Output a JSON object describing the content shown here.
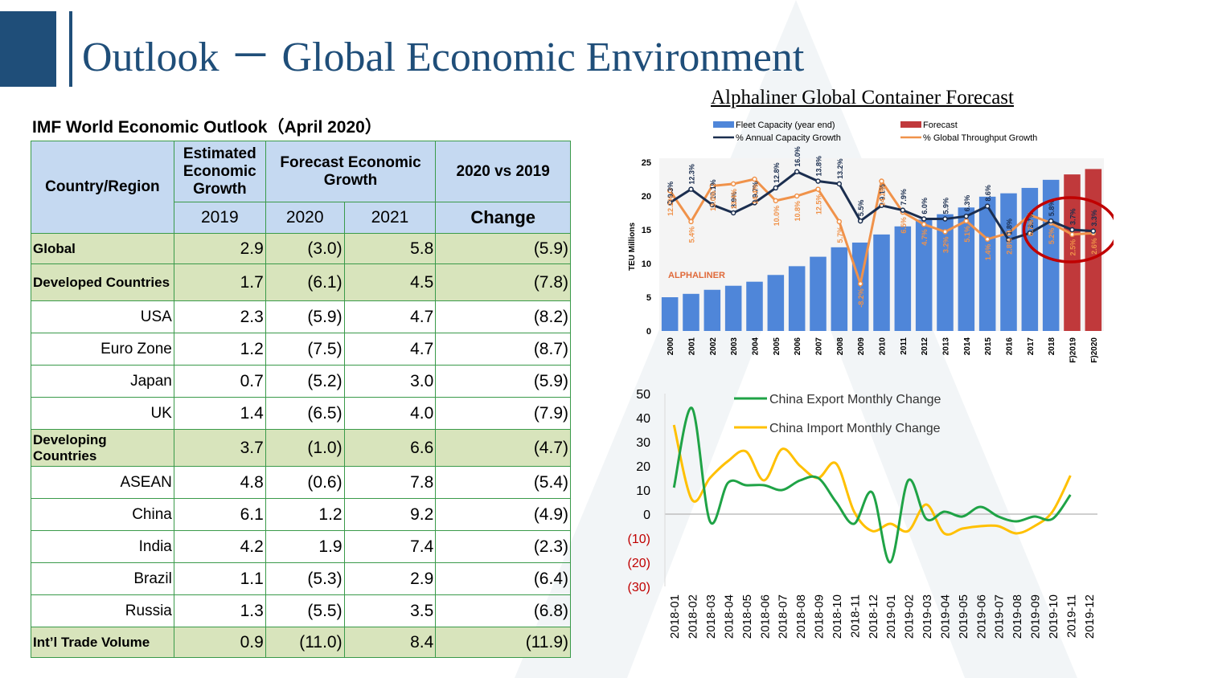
{
  "header": {
    "title": "Outlook － Global Economic Environment"
  },
  "imf_table": {
    "caption": "IMF World Economic Outlook（April 2020）",
    "headers": {
      "country": "Country/Region",
      "estimated": "Estimated Economic Growth",
      "forecast": "Forecast Economic Growth",
      "vs": "2020 vs 2019",
      "y2019": "2019",
      "y2020": "2020",
      "y2021": "2021",
      "change": "Change"
    },
    "rows": [
      {
        "name": "Global",
        "v2019": "2.9",
        "v2020": "(3.0)",
        "v2021": "5.8",
        "change": "(5.9)",
        "highlight": true
      },
      {
        "name": "Developed Countries",
        "v2019": "1.7",
        "v2020": "(6.1)",
        "v2021": "4.5",
        "change": "(7.8)",
        "highlight": true
      },
      {
        "name": "USA",
        "v2019": "2.3",
        "v2020": "(5.9)",
        "v2021": "4.7",
        "change": "(8.2)",
        "highlight": false
      },
      {
        "name": "Euro Zone",
        "v2019": "1.2",
        "v2020": "(7.5)",
        "v2021": "4.7",
        "change": "(8.7)",
        "highlight": false
      },
      {
        "name": "Japan",
        "v2019": "0.7",
        "v2020": "(5.2)",
        "v2021": "3.0",
        "change": "(5.9)",
        "highlight": false
      },
      {
        "name": "UK",
        "v2019": "1.4",
        "v2020": "(6.5)",
        "v2021": "4.0",
        "change": "(7.9)",
        "highlight": false
      },
      {
        "name": "Developing Countries",
        "v2019": "3.7",
        "v2020": "(1.0)",
        "v2021": "6.6",
        "change": "(4.7)",
        "highlight": true
      },
      {
        "name": "ASEAN",
        "v2019": "4.8",
        "v2020": "(0.6)",
        "v2021": "7.8",
        "change": "(5.4)",
        "highlight": false
      },
      {
        "name": "China",
        "v2019": "6.1",
        "v2020": "1.2",
        "v2021": "9.2",
        "change": "(4.9)",
        "highlight": false
      },
      {
        "name": "India",
        "v2019": "4.2",
        "v2020": "1.9",
        "v2021": "7.4",
        "change": "(2.3)",
        "highlight": false
      },
      {
        "name": "Brazil",
        "v2019": "1.1",
        "v2020": "(5.3)",
        "v2021": "2.9",
        "change": "(6.4)",
        "highlight": false
      },
      {
        "name": "Russia",
        "v2019": "1.3",
        "v2020": "(5.5)",
        "v2021": "3.5",
        "change": "(6.8)",
        "highlight": false
      },
      {
        "name": "Int’l Trade Volume",
        "v2019": "0.9",
        "v2020": "(11.0)",
        "v2021": "8.4",
        "change": "(11.9)",
        "highlight": true
      }
    ]
  },
  "chart_data": [
    {
      "type": "bar",
      "title": "Alphaliner Global Container Forecast",
      "ylabel": "TEU Millions",
      "ylim": [
        0,
        25
      ],
      "yticks": [
        0,
        5,
        10,
        15,
        20,
        25
      ],
      "watermark": "ALPHALINER",
      "legend_position": "top",
      "legend": [
        "Fleet Capacity (year end)",
        "Forecast",
        "% Annual Capacity Growth",
        "% Global Throughput Growth"
      ],
      "categories": [
        "2000",
        "2001",
        "2002",
        "2003",
        "2004",
        "2005",
        "2006",
        "2007",
        "2008",
        "2009",
        "2010",
        "2011",
        "2012",
        "2013",
        "2014",
        "2015",
        "2016",
        "2017",
        "2018",
        "F)2019",
        "F)2020"
      ],
      "fleet_capacity": [
        5.0,
        5.5,
        6.1,
        6.7,
        7.3,
        8.3,
        9.6,
        11.0,
        12.4,
        13.1,
        14.3,
        15.5,
        16.5,
        17.3,
        18.3,
        19.9,
        20.4,
        21.2,
        22.4,
        23.2,
        24.0
      ],
      "forecast_flags": [
        false,
        false,
        false,
        false,
        false,
        false,
        false,
        false,
        false,
        false,
        false,
        false,
        false,
        false,
        false,
        false,
        false,
        false,
        false,
        true,
        true
      ],
      "capacity_growth_labels": [
        "9.3%",
        "12.3%",
        "10.1%",
        "8.9%",
        "9.7%",
        "12.8%",
        "16.0%",
        "13.8%",
        "13.2%",
        "5.5%",
        "9.1%",
        "7.9%",
        "6.0%",
        "5.9%",
        "6.3%",
        "8.6%",
        "1.8%",
        "3.7%",
        "5.8%",
        "3.7%",
        "3.3%"
      ],
      "capacity_growth_level": [
        19.0,
        21.0,
        18.7,
        17.5,
        19.0,
        21.2,
        23.6,
        22.2,
        21.8,
        16.3,
        18.6,
        17.9,
        16.6,
        16.6,
        17.0,
        18.5,
        13.5,
        14.5,
        16.3,
        15.0,
        14.8
      ],
      "throughput_growth_labels": [
        "12.2%",
        "5.4%",
        "13.0%",
        "13.4%",
        "14.4%",
        "10.0%",
        "10.8%",
        "12.5%",
        "5.7%",
        "-8.2%",
        "14.1%",
        "6.5%",
        "4.7%",
        "3.2%",
        "5.1%",
        "1.4%",
        "2.8%",
        "6.7%",
        "5.2%",
        "2.5%",
        "2.6%"
      ],
      "throughput_growth_level": [
        20.8,
        16.2,
        21.5,
        21.8,
        22.5,
        19.3,
        20.0,
        21.0,
        16.2,
        7.0,
        22.2,
        17.6,
        15.8,
        14.7,
        16.3,
        13.6,
        14.5,
        17.2,
        16.0,
        14.3,
        14.5
      ]
    },
    {
      "type": "line",
      "x": [
        "2018-01",
        "2018-02",
        "2018-03",
        "2018-04",
        "2018-05",
        "2018-06",
        "2018-07",
        "2018-08",
        "2018-09",
        "2018-10",
        "2018-11",
        "2018-12",
        "2019-01",
        "2019-02",
        "2019-03",
        "2019-04",
        "2019-05",
        "2019-06",
        "2019-07",
        "2019-08",
        "2019-09",
        "2019-10",
        "2019-11",
        "2019-12"
      ],
      "ylim": [
        -30,
        50
      ],
      "ytick_labels": [
        "50",
        "40",
        "30",
        "20",
        "10",
        "0",
        "(10)",
        "(20)",
        "(30)"
      ],
      "ytick_values": [
        50,
        40,
        30,
        20,
        10,
        0,
        -10,
        -20,
        -30
      ],
      "negative_tick_color": "#c00000",
      "legend_position": "top-right",
      "series": [
        {
          "name": "China Export Monthly Change",
          "color": "#1fa346",
          "values": [
            11,
            44,
            -3,
            13,
            12,
            12,
            10,
            14,
            15,
            5,
            -4,
            9,
            -20,
            14,
            -2,
            1,
            -1,
            3,
            -1,
            -3,
            -1,
            -2,
            8,
            null
          ]
        },
        {
          "name": "China Import Monthly Change",
          "color": "#ffc000",
          "values": [
            37,
            6,
            15,
            22,
            26,
            14,
            27,
            20,
            15,
            21,
            1,
            -7,
            -4,
            -7,
            4,
            -8,
            -6,
            -5,
            -5,
            -8,
            -5,
            1,
            16,
            null
          ]
        }
      ]
    }
  ]
}
